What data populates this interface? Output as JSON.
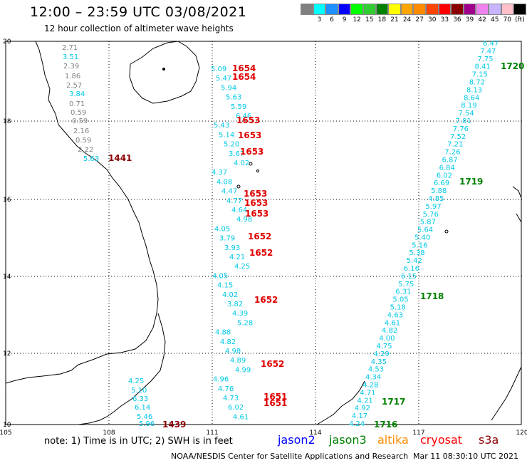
{
  "title": "12:00 – 23:59 UTC 03/08/2021",
  "subtitle": "12 hour collection of altimeter wave heights",
  "legend": {
    "colors": [
      "#808080",
      "#00ffff",
      "#1e90ff",
      "#0000ff",
      "#00ff00",
      "#32cd32",
      "#008000",
      "#ffff00",
      "#ffa500",
      "#ff8c00",
      "#ff4500",
      "#ff0000",
      "#8b0000",
      "#a0008c",
      "#ee82ee",
      "#c8b4ff",
      "#ffc0cb",
      "#000000"
    ],
    "labels": [
      "3",
      "6",
      "9",
      "12",
      "15",
      "18",
      "21",
      "24",
      "27",
      "30",
      "33",
      "36",
      "39",
      "42",
      "45",
      "70",
      "(ft)"
    ]
  },
  "axes": {
    "lon_labels": [
      "105",
      "108",
      "111",
      "114",
      "117",
      "120"
    ],
    "lat_labels": [
      "20",
      "18",
      "16",
      "14",
      "12",
      "10"
    ]
  },
  "notes": {
    "note": "note:  1) Time is in UTC;  2) SWH is in feet",
    "credit": "NOAA/NESDIS Center for Satellite Applications and Research",
    "date": "Mar 11 08:30:10 UTC 2021"
  },
  "satellites": [
    {
      "name": "jason2",
      "color": "#0000ff"
    },
    {
      "name": "jason3",
      "color": "#008000"
    },
    {
      "name": "altika",
      "color": "#ff8c00"
    },
    {
      "name": "cryosat",
      "color": "#ff0000"
    },
    {
      "name": "s3a",
      "color": "#8b0000"
    }
  ],
  "tracks": {
    "coastal_gray": [
      "2.71",
      "2.39",
      "1.86",
      "2.57",
      "0.71",
      "0.59",
      "0.59",
      "2.16",
      "0.59",
      "2.22"
    ],
    "coastal_cyan": [
      "3.51",
      "3.84",
      "5.63"
    ],
    "coastal_time": "1441",
    "track_mid": [
      "5.09",
      "5.47",
      "5.94",
      "5.63",
      "5.59",
      "6.46",
      "5.43",
      "5.14",
      "5.20",
      "3.67",
      "4.02",
      "4.37",
      "4.08",
      "4.47",
      "4.77",
      "4.64",
      "4.98",
      "4.05",
      "3.79",
      "3.93",
      "4.21",
      "4.25",
      "4.05",
      "4.15",
      "4.02",
      "3.82",
      "4.39",
      "5.28",
      "4.88",
      "4.82",
      "4.98",
      "4.89",
      "4.99",
      "4.96",
      "4.76",
      "4.73",
      "6.02",
      "4.61"
    ],
    "track_mid_times": [
      "1654",
      "1654",
      "1653",
      "1653",
      "1653",
      "1653",
      "1653",
      "1653",
      "1652",
      "1652",
      "1652",
      "1652",
      "1651",
      "1651"
    ],
    "track_east": [
      "6.47",
      "7.47",
      "7.75",
      "8.41",
      "7.15",
      "8.72",
      "8.13",
      "8.64",
      "8.19",
      "7.54",
      "7.81",
      "7.76",
      "7.52",
      "7.21",
      "7.26",
      "6.87",
      "6.84",
      "6.02",
      "6.69",
      "5.88",
      "4.85",
      "5.97",
      "5.76",
      "5.87",
      "5.64",
      "5.40",
      "5.16",
      "5.38",
      "5.42",
      "6.16",
      "6.15",
      "5.75",
      "6.31",
      "5.05",
      "5.18",
      "4.63",
      "4.61",
      "4.82",
      "4.00",
      "4.75",
      "4.29",
      "4.35",
      "4.53",
      "4.34",
      "4.28",
      "4.71",
      "4.21",
      "4.92",
      "4.17",
      "4.24"
    ],
    "track_east_times": [
      "1720",
      "1719",
      "1718",
      "1717",
      "1716"
    ],
    "track_south": [
      "4.25",
      "5.10",
      "6.33",
      "6.14",
      "5.46",
      "5.96"
    ],
    "track_south_time": "1439"
  }
}
